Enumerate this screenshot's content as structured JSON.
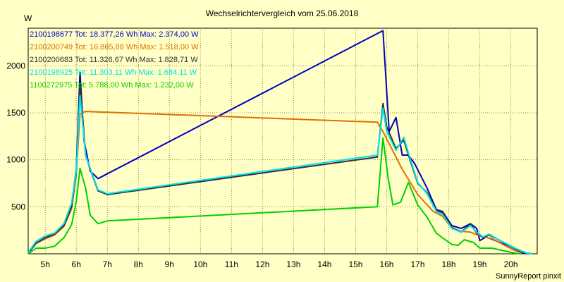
{
  "chart_data": {
    "type": "line",
    "title": "Wechselrichtervergleich vom 25.06.2018",
    "ylabel": "W",
    "xlabel": "",
    "footer": "SunnyReport pinxit",
    "ylim": [
      0,
      2400
    ],
    "xlim": [
      4.45,
      20.85
    ],
    "y_ticks": [
      500,
      1000,
      1500,
      2000
    ],
    "y_tick_labels": [
      "500",
      "1000",
      "1500",
      "2000"
    ],
    "x_ticks": [
      5,
      6,
      7,
      8,
      9,
      10,
      11,
      12,
      13,
      14,
      15,
      16,
      17,
      18,
      19,
      20
    ],
    "x_tick_labels": [
      "5h",
      "6h",
      "7h",
      "8h",
      "9h",
      "10h",
      "11h",
      "12h",
      "13h",
      "14h",
      "15h",
      "16h",
      "17h",
      "18h",
      "19h",
      "20h"
    ],
    "grid": true,
    "legend_position": "top-left",
    "series": [
      {
        "name": "2100198677 Tot: 18.377,26 Wh Max: 2.374,00 W",
        "color": "#0000c0",
        "points": [
          [
            4.45,
            10
          ],
          [
            4.7,
            130
          ],
          [
            5.0,
            190
          ],
          [
            5.3,
            220
          ],
          [
            5.6,
            310
          ],
          [
            5.85,
            520
          ],
          [
            6.0,
            900
          ],
          [
            6.12,
            1930
          ],
          [
            6.25,
            1200
          ],
          [
            6.45,
            880
          ],
          [
            6.7,
            800
          ],
          [
            15.88,
            2374
          ],
          [
            16.08,
            1300
          ],
          [
            16.3,
            1450
          ],
          [
            16.5,
            1050
          ],
          [
            16.7,
            1050
          ],
          [
            16.9,
            960
          ],
          [
            17.3,
            700
          ],
          [
            17.6,
            470
          ],
          [
            17.8,
            450
          ],
          [
            18.1,
            300
          ],
          [
            18.4,
            270
          ],
          [
            18.7,
            320
          ],
          [
            18.9,
            270
          ],
          [
            19.0,
            140
          ],
          [
            19.2,
            180
          ],
          [
            19.5,
            140
          ],
          [
            19.8,
            100
          ],
          [
            20.1,
            40
          ],
          [
            20.4,
            10
          ],
          [
            20.6,
            0
          ]
        ]
      },
      {
        "name": "2100200749 Tot: 16.865,88 Wh Max: 1.518,00 W",
        "color": "#e07000",
        "points": [
          [
            4.45,
            5
          ],
          [
            4.7,
            110
          ],
          [
            5.0,
            160
          ],
          [
            5.3,
            200
          ],
          [
            5.6,
            290
          ],
          [
            5.85,
            480
          ],
          [
            6.0,
            850
          ],
          [
            6.12,
            1490
          ],
          [
            6.3,
            1515
          ],
          [
            15.7,
            1400
          ],
          [
            15.88,
            1300
          ],
          [
            16.5,
            900
          ],
          [
            17.0,
            630
          ],
          [
            17.5,
            450
          ],
          [
            17.8,
            400
          ],
          [
            18.1,
            270
          ],
          [
            18.4,
            240
          ],
          [
            18.7,
            230
          ],
          [
            19.0,
            190
          ],
          [
            19.4,
            160
          ],
          [
            19.8,
            90
          ],
          [
            20.1,
            40
          ],
          [
            20.5,
            10
          ],
          [
            20.7,
            0
          ]
        ]
      },
      {
        "name": "2100200683 Tot: 11.326,67 Wh Max: 1.828,71 W",
        "color": "#303030",
        "points": [
          [
            4.45,
            5
          ],
          [
            4.7,
            110
          ],
          [
            5.0,
            170
          ],
          [
            5.3,
            210
          ],
          [
            5.6,
            300
          ],
          [
            5.85,
            500
          ],
          [
            6.0,
            860
          ],
          [
            6.12,
            1820
          ],
          [
            6.3,
            1050
          ],
          [
            6.5,
            850
          ],
          [
            6.7,
            670
          ],
          [
            7.0,
            630
          ],
          [
            15.7,
            1030
          ],
          [
            15.88,
            1600
          ],
          [
            16.0,
            1350
          ],
          [
            16.3,
            1120
          ],
          [
            16.55,
            1210
          ],
          [
            16.75,
            1000
          ],
          [
            17.0,
            750
          ],
          [
            17.3,
            650
          ],
          [
            17.6,
            460
          ],
          [
            17.8,
            440
          ],
          [
            18.1,
            280
          ],
          [
            18.4,
            230
          ],
          [
            18.7,
            320
          ],
          [
            18.9,
            220
          ],
          [
            19.1,
            175
          ],
          [
            19.3,
            200
          ],
          [
            19.6,
            150
          ],
          [
            19.9,
            100
          ],
          [
            20.2,
            40
          ],
          [
            20.5,
            10
          ],
          [
            20.7,
            0
          ]
        ]
      },
      {
        "name": "2100198925 Tot: 11.303,11 Wh Max: 1.684,11 W",
        "color": "#00e0f0",
        "points": [
          [
            4.45,
            15
          ],
          [
            4.7,
            130
          ],
          [
            5.0,
            190
          ],
          [
            5.3,
            220
          ],
          [
            5.6,
            320
          ],
          [
            5.85,
            540
          ],
          [
            6.0,
            880
          ],
          [
            6.12,
            1684
          ],
          [
            6.3,
            1050
          ],
          [
            6.5,
            860
          ],
          [
            6.7,
            680
          ],
          [
            7.0,
            640
          ],
          [
            15.7,
            1050
          ],
          [
            15.88,
            1550
          ],
          [
            16.0,
            1300
          ],
          [
            16.3,
            1100
          ],
          [
            16.55,
            1240
          ],
          [
            16.75,
            1020
          ],
          [
            17.0,
            760
          ],
          [
            17.3,
            640
          ],
          [
            17.6,
            450
          ],
          [
            17.8,
            420
          ],
          [
            18.1,
            270
          ],
          [
            18.4,
            230
          ],
          [
            18.7,
            300
          ],
          [
            18.9,
            230
          ],
          [
            19.1,
            180
          ],
          [
            19.3,
            210
          ],
          [
            19.6,
            150
          ],
          [
            19.9,
            100
          ],
          [
            20.2,
            50
          ],
          [
            20.5,
            10
          ],
          [
            20.7,
            0
          ]
        ]
      },
      {
        "name": "1100272975 Tot: 5.788,00 Wh Max: 1.232,00 W",
        "color": "#00d000",
        "points": [
          [
            4.45,
            0
          ],
          [
            4.7,
            60
          ],
          [
            5.0,
            60
          ],
          [
            5.3,
            80
          ],
          [
            5.6,
            170
          ],
          [
            5.85,
            310
          ],
          [
            6.0,
            560
          ],
          [
            6.12,
            910
          ],
          [
            6.3,
            700
          ],
          [
            6.45,
            410
          ],
          [
            6.7,
            320
          ],
          [
            7.0,
            350
          ],
          [
            15.7,
            500
          ],
          [
            15.88,
            1232
          ],
          [
            16.05,
            800
          ],
          [
            16.2,
            520
          ],
          [
            16.45,
            550
          ],
          [
            16.7,
            760
          ],
          [
            17.0,
            520
          ],
          [
            17.3,
            390
          ],
          [
            17.6,
            220
          ],
          [
            17.8,
            170
          ],
          [
            18.1,
            100
          ],
          [
            18.3,
            90
          ],
          [
            18.5,
            150
          ],
          [
            18.8,
            120
          ],
          [
            19.0,
            60
          ],
          [
            19.4,
            60
          ],
          [
            19.8,
            30
          ],
          [
            20.1,
            10
          ],
          [
            20.3,
            0
          ]
        ]
      }
    ]
  }
}
